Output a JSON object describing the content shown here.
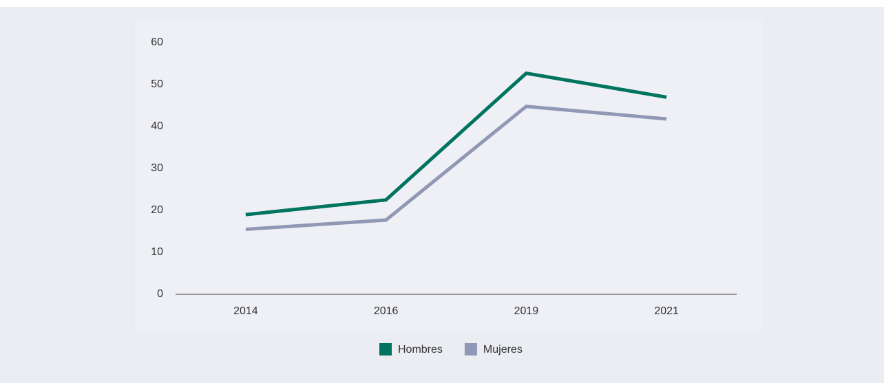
{
  "chart_data": {
    "type": "line",
    "categories": [
      "2014",
      "2016",
      "2019",
      "2021"
    ],
    "series": [
      {
        "name": "Hombres",
        "color": "#00745f",
        "values": [
          19,
          22.5,
          52.7,
          47
        ]
      },
      {
        "name": "Mujeres",
        "color": "#9198b5",
        "values": [
          15.5,
          17.7,
          44.8,
          41.8
        ]
      }
    ],
    "ylim": [
      0,
      60
    ],
    "yticks": [
      0,
      10,
      20,
      30,
      40,
      50,
      60
    ],
    "grid": false,
    "legend": "bottom"
  }
}
